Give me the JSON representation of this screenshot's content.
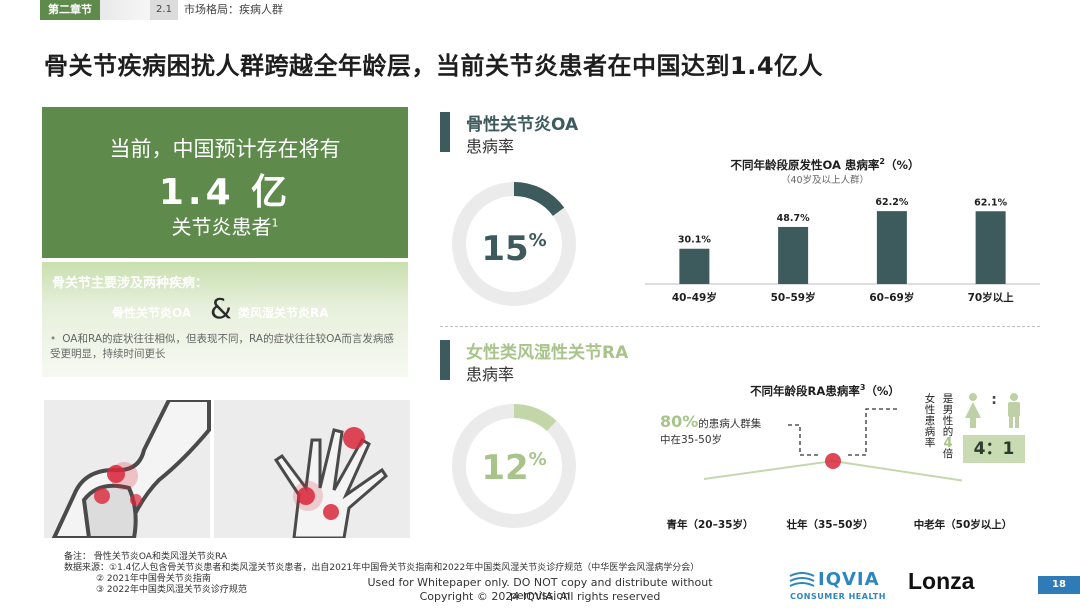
{
  "header": {
    "chapter_tag": "第二章节",
    "chapter_num": "2.1",
    "chapter_title": "市场格局：疾病人群"
  },
  "main_title": "骨关节疾病困扰人群跨越全年龄层，当前关节炎患者在中国达到1.4亿人",
  "left_panel": {
    "line1": "当前，中国预计存在将有",
    "line2": "1.4 亿",
    "line3": "关节炎患者",
    "line3_sup": "1",
    "light_title": "骨关节主要涉及两种疾病：",
    "disease1": "骨性关节炎OA",
    "amp": "&",
    "disease2": "类风湿关节炎RA",
    "note": "OA和RA的症状往往相似，但表现不同，RA的症状往往较OA而言发病感受更明显，持续时间更长",
    "note_bullet": "•"
  },
  "oa": {
    "title": "骨性关节炎OA",
    "subtitle": "患病率",
    "donut_value": "15",
    "donut_unit": "%",
    "donut_fraction": 0.15,
    "chart_title": "不同年龄段原发性OA 患病率",
    "chart_title_sup": "2",
    "chart_title_unit": "（%）",
    "chart_subtitle": "（40岁及以上人群）"
  },
  "ra": {
    "title": "女性类风湿性关节RA",
    "subtitle": "患病率",
    "donut_value": "12",
    "donut_unit": "%",
    "donut_fraction": 0.12,
    "chart_title": "不同年龄段RA患病率",
    "chart_title_sup": "3",
    "chart_title_unit": "（%）",
    "annot_pct": "80%",
    "annot_line1": "的患病人群集",
    "annot_line2": "中在35-50岁",
    "female_col1": "女性患病率",
    "female_col2": "是男性的",
    "female_highlight": "4",
    "female_col3": "倍",
    "ratio": "4：1",
    "ratio_colon": ":",
    "x_labels": [
      "青年（20–35岁）",
      "壮年（35–50岁）",
      "中老年（50岁以上）"
    ]
  },
  "chart_data": [
    {
      "type": "bar",
      "title": "不同年龄段原发性OA 患病率2（%）",
      "subtitle": "（40岁及以上人群）",
      "categories": [
        "40–49岁",
        "50–59岁",
        "60–69岁",
        "70岁以上"
      ],
      "values": [
        30.1,
        48.7,
        62.2,
        62.1
      ],
      "value_labels": [
        "30.1%",
        "48.7%",
        "62.2%",
        "62.1%"
      ],
      "ylim": [
        0,
        70
      ],
      "color": "#3d5a5c"
    },
    {
      "type": "line",
      "title": "不同年龄段RA患病率3（%）",
      "categories": [
        "青年（20–35岁）",
        "壮年（35–50岁）",
        "中老年（50岁以上）"
      ],
      "values": [
        0.4,
        1.0,
        0.35
      ],
      "peak_index": 1,
      "color": "#c8d6b0"
    }
  ],
  "footer": {
    "note_line1": "备注：  骨性关节炎OA和类风湿关节炎RA",
    "note_line2": "数据来源：①1.4亿人包含骨关节炎患者和类风湿关节炎患者，出自2021年中国骨关节炎指南和2022年中国类风湿关节炎诊疗规范（中华医学会风湿病学分会）",
    "note_line3": "② 2021年中国骨关节炎指南",
    "note_line4": "③ 2022年中国类风湿关节炎诊疗规范",
    "copyright1": "Used for Whitepaper only. DO NOT copy and distribute without permission",
    "copyright2": "Copyright © 2024 IQVIA. All rights reserved",
    "iqvia_name": "IQVIA",
    "iqvia_sub": "CONSUMER HEALTH",
    "lonza": "Lonza",
    "page_num": "18"
  },
  "colors": {
    "green": "#5e8a4c",
    "teal": "#3d5a5c",
    "donut_track": "#ebebeb",
    "ra_green": "#8fae6f",
    "iqvia_blue": "#2e86c1",
    "red_joint": "#d9283a"
  }
}
